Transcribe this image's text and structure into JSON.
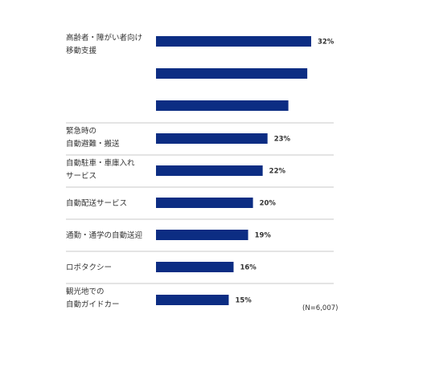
{
  "colors": {
    "bar": "#0c2d83",
    "separator": "#c8c8c8",
    "text": "#333333"
  },
  "note": "(N=6,007)",
  "chart_data": {
    "type": "bar",
    "orientation": "horizontal",
    "unit": "%",
    "xlim": [
      0,
      32
    ],
    "grid": false,
    "groups": [
      {
        "label_lines": [
          "高齢者・障がい者向け",
          "移動支援"
        ],
        "values": [
          32,
          31.2,
          27.3
        ],
        "value_labels": [
          "32%",
          "",
          ""
        ]
      },
      {
        "label_lines": [
          "緊急時の",
          "自動避難・搬送"
        ],
        "values": [
          23
        ],
        "value_labels": [
          "23%"
        ]
      },
      {
        "label_lines": [
          "自動駐車・車庫入れ",
          "サービス"
        ],
        "values": [
          22
        ],
        "value_labels": [
          "22%"
        ]
      },
      {
        "label_lines": [
          "自動配送サービス"
        ],
        "values": [
          20
        ],
        "value_labels": [
          "20%"
        ]
      },
      {
        "label_lines": [
          "通勤・通学の自動送迎"
        ],
        "values": [
          19
        ],
        "value_labels": [
          "19%"
        ]
      },
      {
        "label_lines": [
          "ロボタクシー"
        ],
        "values": [
          16
        ],
        "value_labels": [
          "16%"
        ]
      },
      {
        "label_lines": [
          "観光地での",
          "自動ガイドカー"
        ],
        "values": [
          15
        ],
        "value_labels": [
          "15%"
        ]
      }
    ]
  }
}
